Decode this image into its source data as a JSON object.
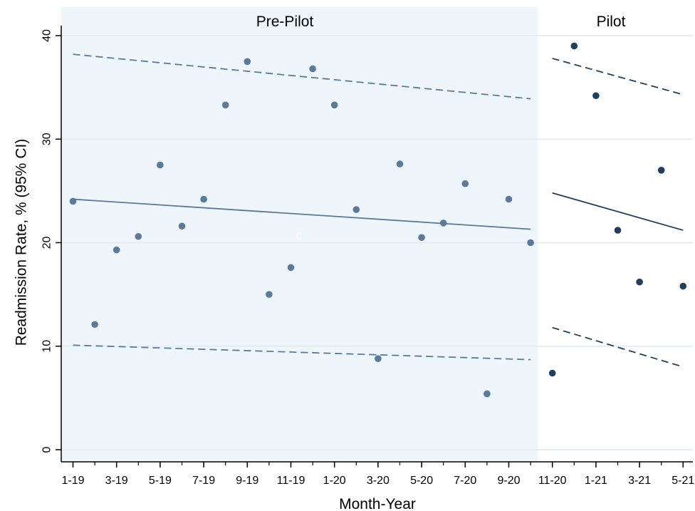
{
  "chart_data": {
    "type": "scatter",
    "xlabel": "Month-Year",
    "ylabel": "Readmission Rate, % (95% CI)",
    "ylim": [
      0,
      40
    ],
    "yticks": [
      0,
      10,
      20,
      30,
      40
    ],
    "xticks": [
      "1-19",
      "3-19",
      "5-19",
      "7-19",
      "9-19",
      "11-19",
      "1-20",
      "3-20",
      "5-20",
      "7-20",
      "9-20",
      "11-20",
      "1-21",
      "3-21",
      "5-21"
    ],
    "grid": true,
    "panels": [
      {
        "name": "Pre-Pilot",
        "shaded": true,
        "x": [
          "1-19",
          "2-19",
          "3-19",
          "4-19",
          "5-19",
          "6-19",
          "7-19",
          "8-19",
          "9-19",
          "10-19",
          "11-19",
          "12-19",
          "1-20",
          "2-20",
          "3-20",
          "4-20",
          "5-20",
          "6-20",
          "7-20",
          "8-20",
          "9-20",
          "10-20"
        ],
        "values": [
          24.0,
          12.1,
          19.3,
          20.6,
          27.5,
          21.6,
          24.2,
          33.3,
          37.5,
          15.0,
          17.6,
          36.8,
          33.3,
          23.2,
          8.8,
          27.6,
          20.5,
          21.9,
          25.7,
          5.4,
          24.2,
          20.0
        ],
        "fit": {
          "start": 24.2,
          "end": 21.3
        },
        "ci_upper": {
          "start": 38.2,
          "end": 33.9
        },
        "ci_lower": {
          "start": 10.1,
          "end": 8.7
        },
        "color": "#5a7a99"
      },
      {
        "name": "Pilot",
        "shaded": false,
        "x": [
          "11-20",
          "12-20",
          "1-21",
          "2-21",
          "3-21",
          "4-21",
          "5-21"
        ],
        "values": [
          7.4,
          39.0,
          34.2,
          21.2,
          16.2,
          27.0,
          15.8
        ],
        "fit": {
          "start": 24.8,
          "end": 21.2
        },
        "ci_upper": {
          "start": 37.8,
          "end": 34.3
        },
        "ci_lower": {
          "start": 11.8,
          "end": 8.0
        },
        "color": "#1e3f5f"
      }
    ],
    "annotations": [
      "c"
    ]
  },
  "colors": {
    "preshade": "#eef5fb",
    "grid": "#e5edf3",
    "axis": "#000000"
  }
}
